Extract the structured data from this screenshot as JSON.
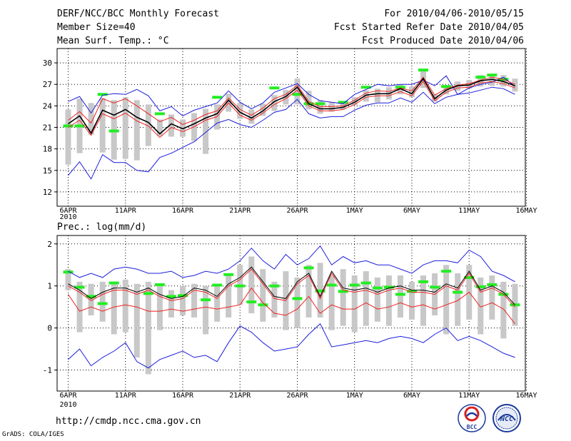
{
  "header": {
    "title": "DERF/NCC/BCC Monthly Forecast",
    "member_size": "Member Size=40",
    "variable": "Mean Surf. Temp.: °C",
    "forecast_period": "For 2010/04/06-2010/05/15",
    "refer_date": "Fcst Started Refer Date 2010/04/05",
    "produced_date": "Fcst Produced Date 2010/04/06"
  },
  "footer": {
    "url": "http://cmdp.ncc.cma.gov.cn",
    "grads_credit": "GrADS: COLA/IGES",
    "logo_bcc": "BCC",
    "logo_ncc": "NCC"
  },
  "colors": {
    "box": "#c8c8c8",
    "green": "#22ee22",
    "blue": "#1c1cdd",
    "red": "#ee2222",
    "black": "#000000"
  },
  "chart_data": [
    {
      "type": "line",
      "title": "Mean Surf. Temp.: °C",
      "x_tick_labels": [
        "6APR",
        "11APR",
        "16APR",
        "21APR",
        "26APR",
        "1MAY",
        "6MAY",
        "11MAY",
        "16MAY"
      ],
      "x_sub_label": "2010",
      "y_ticks": [
        12,
        15,
        18,
        21,
        24,
        27,
        30
      ],
      "ylim": [
        10,
        32
      ],
      "days": 40,
      "series": [
        {
          "name": "ensemble max",
          "color": "blue",
          "values": [
            24.6,
            25.3,
            23,
            25.5,
            25.7,
            25.6,
            26.3,
            25.4,
            23.3,
            23.9,
            22.6,
            23.4,
            23.9,
            24.4,
            26.1,
            24.5,
            23.6,
            24.4,
            25.9,
            26.5,
            27.1,
            25.6,
            24.7,
            24.5,
            24.3,
            25.6,
            26.3,
            27,
            26.8,
            27,
            27,
            27.6,
            26.8,
            28.2,
            25.6,
            26.5,
            27,
            27.3,
            28,
            26.7
          ]
        },
        {
          "name": "ensemble upper",
          "color": "red",
          "values": [
            22,
            23.2,
            21.6,
            25,
            24.4,
            25,
            24,
            22.9,
            21.8,
            22.4,
            21.4,
            22,
            22.8,
            23.3,
            25.1,
            23.5,
            22.7,
            23.7,
            25,
            25.6,
            26.9,
            24.6,
            23.9,
            23.9,
            24,
            24.8,
            25.8,
            26.1,
            26,
            26.5,
            26.1,
            28,
            25.5,
            26.4,
            26.9,
            27.1,
            27.6,
            28,
            27.7,
            27
          ]
        },
        {
          "name": "ensemble median",
          "color": "black",
          "values": [
            21.5,
            22.6,
            20.2,
            23.4,
            22.7,
            23.5,
            22.4,
            21.7,
            20.1,
            21.5,
            20.8,
            21.5,
            22.3,
            22.9,
            24.8,
            23.1,
            22.3,
            23.3,
            24.6,
            25.3,
            26.6,
            24.3,
            23.6,
            23.6,
            23.8,
            24.5,
            25.5,
            25.7,
            25.7,
            26.4,
            25.7,
            27.8,
            25,
            26.2,
            26.8,
            26.9,
            27.5,
            27.7,
            27.4,
            26.8
          ]
        },
        {
          "name": "ensemble lower",
          "color": "red",
          "values": [
            21,
            22,
            19.9,
            22.9,
            22.2,
            23,
            21.9,
            21.2,
            19.6,
            21,
            20.4,
            21.1,
            22,
            22.5,
            24.4,
            22.7,
            22,
            23,
            24.2,
            25,
            26.2,
            24,
            23.3,
            23.3,
            23.5,
            24.2,
            25.2,
            25.4,
            25.4,
            26,
            25.4,
            27.4,
            24.7,
            25.9,
            26.5,
            26.6,
            27.2,
            27.4,
            27.1,
            26.5
          ]
        },
        {
          "name": "ensemble min",
          "color": "blue",
          "values": [
            14.3,
            16.2,
            13.8,
            17.2,
            16.1,
            16.1,
            15,
            14.8,
            16.8,
            17.4,
            18.2,
            19,
            20.3,
            21.6,
            22.1,
            21.4,
            21,
            22,
            23.1,
            23.5,
            24.9,
            22.9,
            22.3,
            22.5,
            22.5,
            23.4,
            24.1,
            24.4,
            24.4,
            25.1,
            24.5,
            25.9,
            24.3,
            25.2,
            25.6,
            25.8,
            26.2,
            26.6,
            26.4,
            25.6
          ]
        },
        {
          "name": "box top",
          "color": "box",
          "values": [
            23.5,
            25,
            24.4,
            25.1,
            24.8,
            25.2,
            24.8,
            24.2,
            22.1,
            22.8,
            22.1,
            23,
            23.6,
            24.2,
            25.7,
            24.4,
            23.5,
            24.3,
            25.5,
            26.2,
            27.8,
            26.1,
            24.8,
            24.5,
            24.6,
            25.2,
            26.2,
            26.4,
            26.6,
            27,
            26.7,
            28.9,
            25.6,
            26.9,
            27.4,
            27.6,
            28.3,
            28.4,
            28.3,
            27.8
          ]
        },
        {
          "name": "box bottom",
          "color": "box",
          "values": [
            15.8,
            17.4,
            20,
            17.5,
            16.5,
            16.6,
            16.4,
            18.4,
            19.8,
            19.7,
            19.7,
            19.1,
            17.3,
            20.7,
            23.2,
            22.2,
            21.5,
            22.6,
            23.3,
            24.2,
            24.2,
            23.5,
            22.9,
            23.2,
            23.5,
            24.1,
            24.6,
            24.5,
            24.9,
            25.6,
            25.2,
            26.5,
            24.6,
            25.6,
            26.1,
            26.4,
            26.7,
            26.8,
            26.7,
            26
          ]
        },
        {
          "name": "green marker",
          "color": "green",
          "values": [
            21.2,
            21.2,
            null,
            25.6,
            20.5,
            null,
            null,
            null,
            22.9,
            null,
            null,
            null,
            null,
            25.2,
            null,
            null,
            null,
            null,
            26.5,
            null,
            25.6,
            24.3,
            24.3,
            null,
            24.5,
            null,
            26.6,
            null,
            null,
            26.6,
            null,
            29,
            null,
            26.7,
            null,
            null,
            28,
            28.3,
            27.7,
            null
          ]
        }
      ]
    },
    {
      "type": "line",
      "title": "Prec.: log(mm/d)",
      "x_tick_labels": [
        "6APR",
        "11APR",
        "16APR",
        "21APR",
        "26APR",
        "1MAY",
        "6MAY",
        "11MAY",
        "16MAY"
      ],
      "x_sub_label": "2010",
      "y_ticks": [
        -1,
        0,
        1,
        2
      ],
      "ylim": [
        -1.5,
        2.2
      ],
      "days": 40,
      "series": [
        {
          "name": "ensemble max",
          "color": "blue",
          "values": [
            1.35,
            1.2,
            1.3,
            1.2,
            1.4,
            1.45,
            1.4,
            1.3,
            1.3,
            1.35,
            1.2,
            1.25,
            1.35,
            1.3,
            1.4,
            1.6,
            1.9,
            1.6,
            1.4,
            1.75,
            1.5,
            1.65,
            1.95,
            1.5,
            1.7,
            1.55,
            1.6,
            1.5,
            1.5,
            1.4,
            1.3,
            1.5,
            1.6,
            1.6,
            1.55,
            1.85,
            1.7,
            1.35,
            1.25,
            1.1
          ]
        },
        {
          "name": "ensemble upper",
          "color": "black",
          "values": [
            1.05,
            0.9,
            0.7,
            0.85,
            0.95,
            0.95,
            0.85,
            0.95,
            0.8,
            0.7,
            0.75,
            0.95,
            0.9,
            0.75,
            1.05,
            1.2,
            1.45,
            1.1,
            0.75,
            0.7,
            1.1,
            1.3,
            0.75,
            1.35,
            0.95,
            0.9,
            0.95,
            0.85,
            0.95,
            1.0,
            0.9,
            0.9,
            0.85,
            1.05,
            0.95,
            1.35,
            0.9,
            1.0,
            0.85,
            0.55
          ]
        },
        {
          "name": "ensemble median",
          "color": "red",
          "values": [
            1.0,
            0.85,
            0.65,
            0.8,
            0.9,
            0.9,
            0.8,
            0.9,
            0.75,
            0.65,
            0.7,
            0.9,
            0.85,
            0.7,
            1.0,
            1.15,
            1.4,
            1.05,
            0.7,
            0.65,
            1.05,
            1.25,
            0.7,
            1.3,
            0.9,
            0.85,
            0.9,
            0.8,
            0.9,
            0.95,
            0.85,
            0.85,
            0.8,
            1.0,
            0.9,
            1.3,
            0.85,
            0.95,
            0.8,
            0.5
          ]
        },
        {
          "name": "ensemble lower",
          "color": "red",
          "values": [
            0.8,
            0.4,
            0.5,
            0.4,
            0.5,
            0.55,
            0.5,
            0.4,
            0.4,
            0.45,
            0.4,
            0.45,
            0.5,
            0.45,
            0.5,
            0.55,
            0.95,
            0.6,
            0.35,
            0.3,
            0.45,
            0.75,
            0.35,
            0.55,
            0.45,
            0.45,
            0.6,
            0.45,
            0.5,
            0.6,
            0.5,
            0.55,
            0.45,
            0.55,
            0.65,
            0.85,
            0.5,
            0.6,
            0.45,
            0.1
          ]
        },
        {
          "name": "ensemble min",
          "color": "blue",
          "values": [
            -0.75,
            -0.5,
            -0.9,
            -0.7,
            -0.55,
            -0.35,
            -0.8,
            -0.95,
            -0.75,
            -0.65,
            -0.55,
            -0.7,
            -0.65,
            -0.8,
            -0.35,
            0.05,
            -0.1,
            -0.35,
            -0.55,
            -0.5,
            -0.45,
            -0.15,
            0.1,
            -0.45,
            -0.4,
            -0.35,
            -0.3,
            -0.35,
            -0.25,
            -0.2,
            -0.25,
            -0.35,
            -0.15,
            0.0,
            -0.3,
            -0.2,
            -0.3,
            -0.45,
            -0.6,
            -0.7
          ]
        },
        {
          "name": "box top",
          "color": "box",
          "values": [
            1.4,
            1.1,
            1.05,
            1.1,
            1.1,
            1.15,
            1.05,
            1.1,
            1.0,
            0.9,
            1.0,
            1.05,
            1.0,
            1.05,
            1.3,
            1.5,
            1.7,
            1.4,
            1.1,
            1.35,
            1.2,
            1.5,
            1.55,
            1.25,
            1.4,
            1.25,
            1.35,
            1.2,
            1.25,
            1.25,
            1.1,
            1.25,
            1.3,
            1.5,
            1.3,
            1.5,
            1.2,
            1.25,
            1.1,
            1.05
          ]
        },
        {
          "name": "box bottom",
          "color": "box",
          "values": [
            0.9,
            -0.1,
            0.3,
            0.15,
            -0.15,
            -0.1,
            -0.7,
            -1.1,
            -0.05,
            0.25,
            0.3,
            0.25,
            -0.15,
            0.15,
            0.25,
            0.55,
            0.35,
            0.15,
            0.25,
            -0.05,
            0.0,
            0.25,
            0.25,
            -0.05,
            0.05,
            -0.1,
            0.05,
            0.15,
            0.05,
            0.25,
            0.2,
            0.05,
            0.3,
            -0.15,
            0.05,
            0.2,
            -0.15,
            0.2,
            -0.25,
            0.05
          ]
        },
        {
          "name": "green marker",
          "color": "green",
          "values": [
            1.33,
            0.97,
            0.75,
            0.58,
            1.07,
            null,
            null,
            0.82,
            1.03,
            0.75,
            0.77,
            null,
            0.67,
            1.02,
            1.27,
            1.0,
            0.62,
            0.55,
            1.0,
            null,
            0.7,
            1.43,
            0.88,
            1.02,
            0.87,
            1.02,
            1.07,
            0.95,
            0.97,
            0.8,
            0.87,
            1.1,
            0.97,
            1.35,
            0.85,
            1.2,
            0.98,
            1.03,
            0.8,
            0.55
          ]
        }
      ]
    }
  ]
}
